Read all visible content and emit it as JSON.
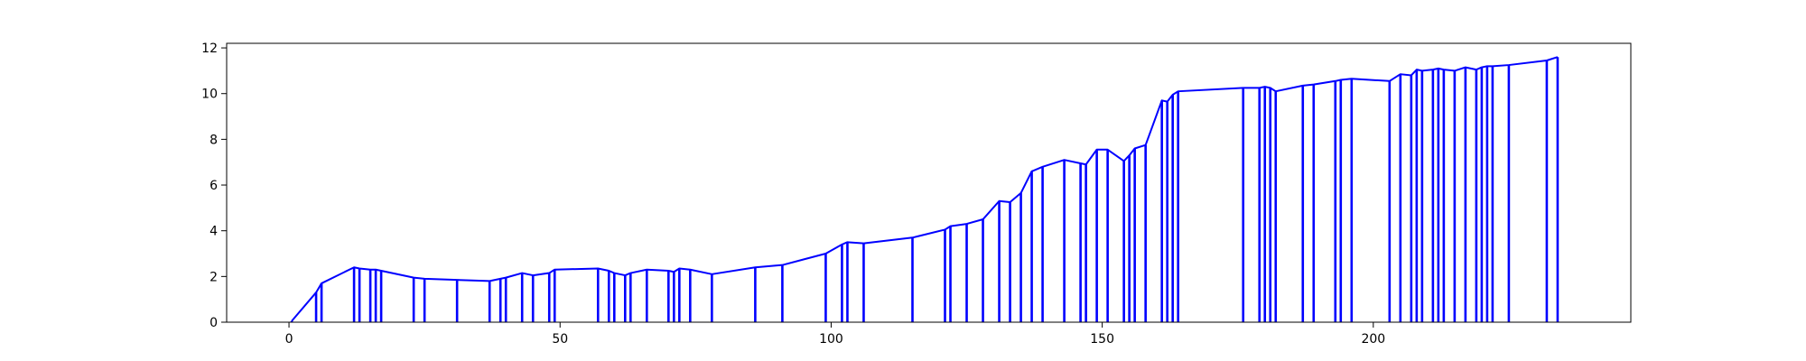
{
  "chart_data": {
    "type": "line",
    "title": "",
    "xlabel": "",
    "ylabel": "",
    "xlim": [
      -11.5,
      247.5
    ],
    "ylim": [
      0,
      12.2
    ],
    "x_ticks": [
      0,
      50,
      100,
      150,
      200
    ],
    "y_ticks": [
      0,
      2,
      4,
      6,
      8,
      10,
      12
    ],
    "grid": false,
    "legend": "none",
    "line_color": "#0000ff",
    "series": [
      {
        "style": "stems-with-connecting-line",
        "x": [
          0.5,
          5,
          6,
          12,
          13,
          15,
          16,
          17,
          23,
          25,
          31,
          37,
          39,
          40,
          43,
          45,
          48,
          49,
          57,
          59,
          60,
          62,
          63,
          66,
          70,
          71,
          72,
          74,
          78,
          86,
          91,
          99,
          102,
          103,
          106,
          115,
          121,
          122,
          125,
          128,
          131,
          133,
          135,
          137,
          139,
          143,
          146,
          147,
          149,
          151,
          154,
          155,
          156,
          158,
          161,
          162,
          163,
          164,
          176,
          179,
          180,
          181,
          182,
          187,
          189,
          193,
          194,
          196,
          203,
          205,
          207,
          208,
          209,
          211,
          212,
          213,
          215,
          217,
          219,
          220,
          221,
          222,
          225,
          232,
          234
        ],
        "y": [
          0.05,
          1.3,
          1.7,
          2.4,
          2.35,
          2.3,
          2.3,
          2.25,
          1.95,
          1.9,
          1.85,
          1.8,
          1.9,
          1.95,
          2.15,
          2.05,
          2.15,
          2.3,
          2.35,
          2.25,
          2.15,
          2.05,
          2.15,
          2.3,
          2.25,
          2.2,
          2.35,
          2.3,
          2.1,
          2.4,
          2.5,
          3.0,
          3.4,
          3.5,
          3.45,
          3.7,
          4.05,
          4.2,
          4.3,
          4.5,
          5.3,
          5.25,
          5.65,
          6.6,
          6.8,
          7.1,
          6.95,
          6.9,
          7.55,
          7.55,
          7.05,
          7.3,
          7.6,
          7.75,
          9.7,
          9.65,
          9.95,
          10.1,
          10.25,
          10.25,
          10.3,
          10.25,
          10.1,
          10.35,
          10.4,
          10.55,
          10.6,
          10.65,
          10.55,
          10.85,
          10.8,
          11.05,
          11.0,
          11.05,
          11.1,
          11.05,
          11.0,
          11.15,
          11.05,
          11.15,
          11.2,
          11.2,
          11.25,
          11.45,
          11.6
        ]
      }
    ]
  }
}
